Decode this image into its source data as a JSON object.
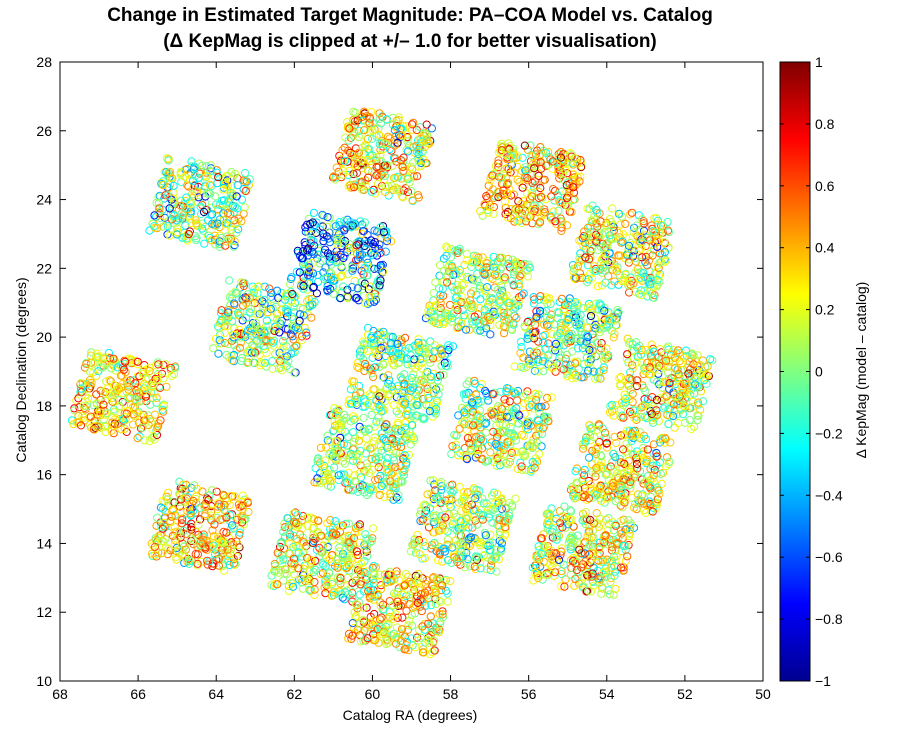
{
  "chart_data": {
    "type": "scatter",
    "title": "Change in Estimated Target Magnitude: PA–COA Model vs. Catalog",
    "subtitle": "(Δ KepMag is clipped at +/– 1.0 for better visualisation)",
    "xlabel": "Catalog RA (degrees)",
    "ylabel": "Catalog Declination (degrees)",
    "xlim": [
      68,
      50
    ],
    "ylim": [
      10,
      28
    ],
    "x_reversed": true,
    "xticks": [
      "68",
      "66",
      "64",
      "62",
      "60",
      "58",
      "56",
      "54",
      "52",
      "50"
    ],
    "yticks": [
      "10",
      "12",
      "14",
      "16",
      "18",
      "20",
      "22",
      "24",
      "26",
      "28"
    ],
    "marker": "open-circle",
    "colormap": "jet",
    "colorbar": {
      "label": "Δ KepMag (model – catalog)",
      "range": [
        -1,
        1
      ],
      "ticks": [
        "1",
        "0.8",
        "0.6",
        "0.4",
        "0.2",
        "0",
        "−0.2",
        "−0.4",
        "−0.6",
        "−0.8",
        "−1"
      ]
    },
    "point_density_per_sq_degree": 55,
    "modules": [
      {
        "ra_center": 64.4,
        "dec_center": 23.9,
        "base_delta": 0.05,
        "spread": 0.35
      },
      {
        "ra_center": 59.7,
        "dec_center": 25.3,
        "base_delta": 0.25,
        "spread": 0.3
      },
      {
        "ra_center": 55.9,
        "dec_center": 24.4,
        "base_delta": 0.35,
        "spread": 0.3
      },
      {
        "ra_center": 53.6,
        "dec_center": 22.5,
        "base_delta": 0.15,
        "spread": 0.3
      },
      {
        "ra_center": 60.8,
        "dec_center": 22.3,
        "base_delta": -0.35,
        "spread": 0.45
      },
      {
        "ra_center": 57.3,
        "dec_center": 21.3,
        "base_delta": 0.1,
        "spread": 0.3
      },
      {
        "ra_center": 62.8,
        "dec_center": 20.3,
        "base_delta": 0.05,
        "spread": 0.35
      },
      {
        "ra_center": 59.3,
        "dec_center": 18.9,
        "base_delta": 0.0,
        "spread": 0.3
      },
      {
        "ra_center": 55.0,
        "dec_center": 20.0,
        "base_delta": 0.05,
        "spread": 0.35
      },
      {
        "ra_center": 52.6,
        "dec_center": 18.6,
        "base_delta": 0.15,
        "spread": 0.3
      },
      {
        "ra_center": 66.4,
        "dec_center": 18.3,
        "base_delta": 0.3,
        "spread": 0.25
      },
      {
        "ra_center": 60.2,
        "dec_center": 16.6,
        "base_delta": 0.05,
        "spread": 0.3
      },
      {
        "ra_center": 56.7,
        "dec_center": 17.4,
        "base_delta": 0.1,
        "spread": 0.3
      },
      {
        "ra_center": 53.6,
        "dec_center": 16.2,
        "base_delta": 0.25,
        "spread": 0.3
      },
      {
        "ra_center": 64.4,
        "dec_center": 14.5,
        "base_delta": 0.3,
        "spread": 0.3
      },
      {
        "ra_center": 61.3,
        "dec_center": 13.6,
        "base_delta": 0.2,
        "spread": 0.3
      },
      {
        "ra_center": 57.7,
        "dec_center": 14.5,
        "base_delta": 0.05,
        "spread": 0.3
      },
      {
        "ra_center": 54.6,
        "dec_center": 13.8,
        "base_delta": 0.2,
        "spread": 0.3
      },
      {
        "ra_center": 59.3,
        "dec_center": 12.1,
        "base_delta": 0.3,
        "spread": 0.3
      }
    ]
  }
}
